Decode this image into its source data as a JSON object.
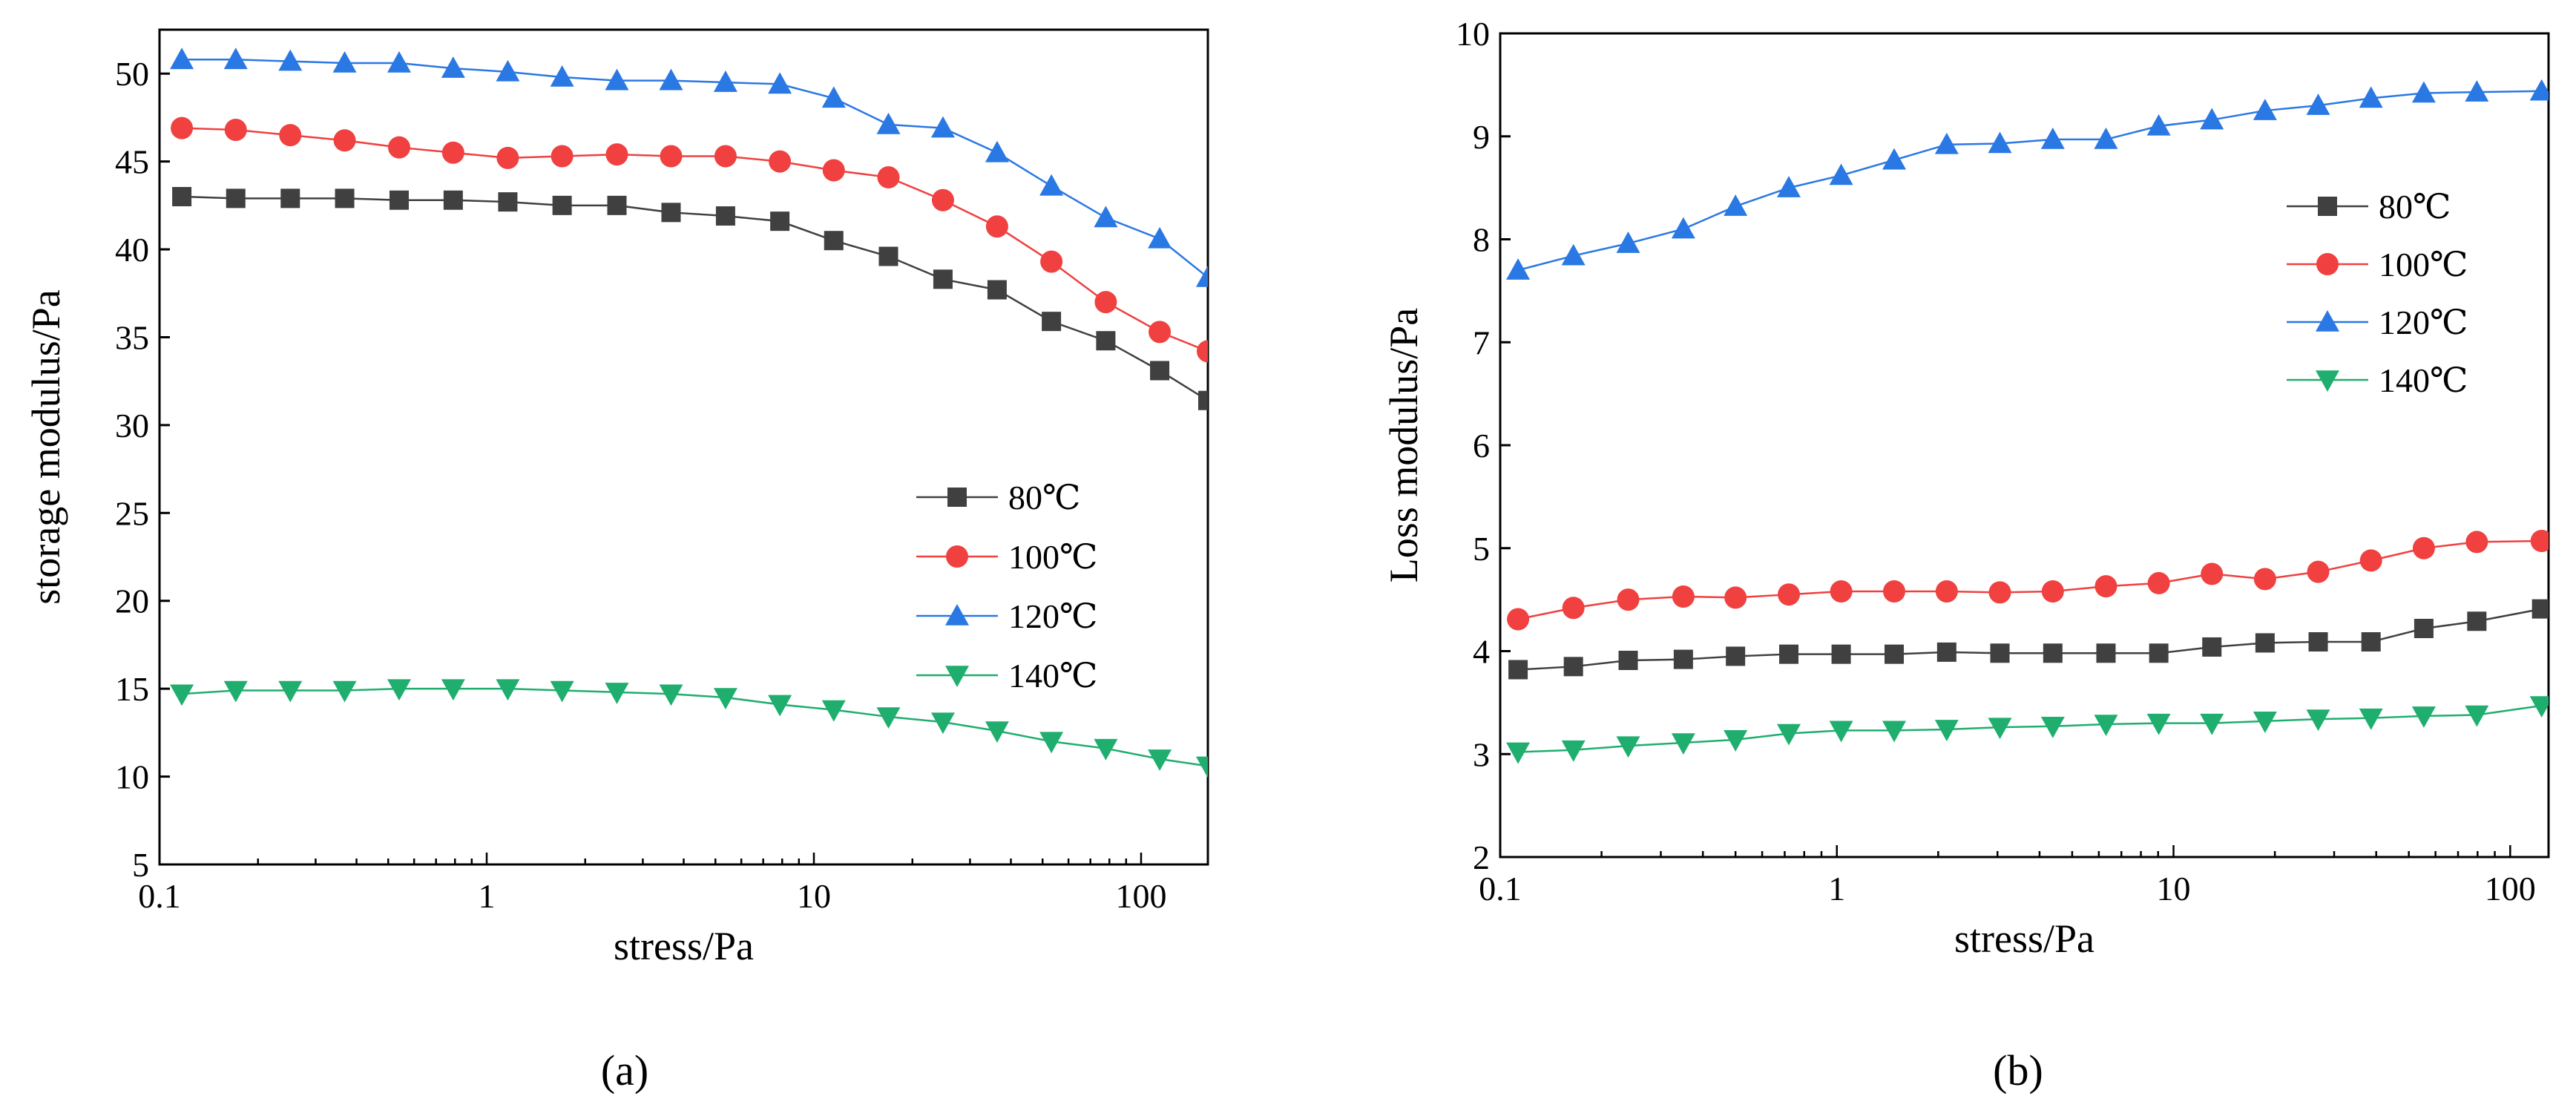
{
  "chart_data": [
    {
      "type": "line",
      "panel_label": "(a)",
      "xlabel": "stress/Pa",
      "ylabel": "storage modulus/Pa",
      "xscale": "log",
      "xlim": [
        0.1,
        160
      ],
      "ylim": [
        5,
        52.5
      ],
      "xticks": [
        0.1,
        1,
        10,
        100
      ],
      "xtick_labels": [
        "0.1",
        "1",
        "10",
        "100"
      ],
      "yticks": [
        5,
        10,
        15,
        20,
        25,
        30,
        35,
        40,
        45,
        50
      ],
      "ytick_labels": [
        "5",
        "10",
        "15",
        "20",
        "25",
        "30",
        "35",
        "40",
        "45",
        "50"
      ],
      "grid": false,
      "legend_position": "center-right",
      "x": [
        0.117,
        0.171,
        0.251,
        0.368,
        0.54,
        0.79,
        1.16,
        1.7,
        2.5,
        3.66,
        5.37,
        7.87,
        11.5,
        16.9,
        24.8,
        36.3,
        53.2,
        78,
        114,
        160
      ],
      "series": [
        {
          "name": "80℃",
          "color": "#404040",
          "marker": "square",
          "values": [
            43.0,
            42.9,
            42.9,
            42.9,
            42.8,
            42.8,
            42.7,
            42.5,
            42.5,
            42.1,
            41.9,
            41.6,
            40.5,
            39.6,
            38.3,
            37.7,
            35.9,
            34.8,
            33.1,
            31.4
          ]
        },
        {
          "name": "100℃",
          "color": "#f04040",
          "marker": "circle",
          "values": [
            46.9,
            46.8,
            46.5,
            46.2,
            45.8,
            45.5,
            45.2,
            45.3,
            45.4,
            45.3,
            45.3,
            45.0,
            44.5,
            44.1,
            42.8,
            41.3,
            39.3,
            37.0,
            35.3,
            34.2
          ]
        },
        {
          "name": "120℃",
          "color": "#2a78e4",
          "marker": "triangle-up",
          "values": [
            50.8,
            50.8,
            50.7,
            50.6,
            50.6,
            50.3,
            50.1,
            49.8,
            49.6,
            49.6,
            49.5,
            49.4,
            48.6,
            47.1,
            46.9,
            45.5,
            43.6,
            41.8,
            40.6,
            38.4
          ]
        },
        {
          "name": "140℃",
          "color": "#1fae6e",
          "marker": "triangle-down",
          "values": [
            14.7,
            14.9,
            14.9,
            14.9,
            15.0,
            15.0,
            15.0,
            14.9,
            14.8,
            14.7,
            14.5,
            14.1,
            13.8,
            13.4,
            13.1,
            12.6,
            12.0,
            11.6,
            11.0,
            10.6
          ]
        }
      ]
    },
    {
      "type": "line",
      "panel_label": "(b)",
      "xlabel": "stress/Pa",
      "ylabel": "Loss modulus/Pa",
      "xscale": "log",
      "xlim": [
        0.1,
        130
      ],
      "ylim": [
        2,
        10
      ],
      "xticks": [
        0.1,
        1,
        10,
        100
      ],
      "xtick_labels": [
        "0.1",
        "1",
        "10",
        "100"
      ],
      "yticks": [
        2,
        3,
        4,
        5,
        6,
        7,
        8,
        9,
        10
      ],
      "ytick_labels": [
        "2",
        "3",
        "4",
        "5",
        "6",
        "7",
        "8",
        "9",
        "10"
      ],
      "grid": false,
      "legend_position": "top-right",
      "x": [
        0.113,
        0.165,
        0.24,
        0.35,
        0.5,
        0.72,
        1.03,
        1.48,
        2.12,
        3.05,
        4.38,
        6.3,
        9.04,
        13.0,
        18.7,
        26.9,
        38.6,
        55.4,
        79.6,
        124
      ],
      "series": [
        {
          "name": "80℃",
          "color": "#404040",
          "marker": "square",
          "values": [
            3.82,
            3.85,
            3.91,
            3.92,
            3.95,
            3.97,
            3.97,
            3.97,
            3.99,
            3.98,
            3.98,
            3.98,
            3.98,
            4.04,
            4.08,
            4.09,
            4.09,
            4.22,
            4.29,
            4.41
          ]
        },
        {
          "name": "100℃",
          "color": "#f04040",
          "marker": "circle",
          "values": [
            4.31,
            4.42,
            4.5,
            4.53,
            4.52,
            4.55,
            4.58,
            4.58,
            4.58,
            4.57,
            4.58,
            4.63,
            4.66,
            4.75,
            4.7,
            4.77,
            4.88,
            5.0,
            5.06,
            5.07
          ]
        },
        {
          "name": "120℃",
          "color": "#2a78e4",
          "marker": "triangle-up",
          "values": [
            7.7,
            7.84,
            7.96,
            8.1,
            8.32,
            8.5,
            8.62,
            8.77,
            8.92,
            8.93,
            8.97,
            8.97,
            9.1,
            9.16,
            9.25,
            9.3,
            9.37,
            9.42,
            9.43,
            9.44
          ]
        },
        {
          "name": "140℃",
          "color": "#1fae6e",
          "marker": "triangle-down",
          "values": [
            3.02,
            3.04,
            3.08,
            3.11,
            3.14,
            3.2,
            3.23,
            3.23,
            3.24,
            3.26,
            3.27,
            3.29,
            3.3,
            3.3,
            3.32,
            3.34,
            3.35,
            3.37,
            3.38,
            3.47
          ]
        }
      ]
    }
  ]
}
